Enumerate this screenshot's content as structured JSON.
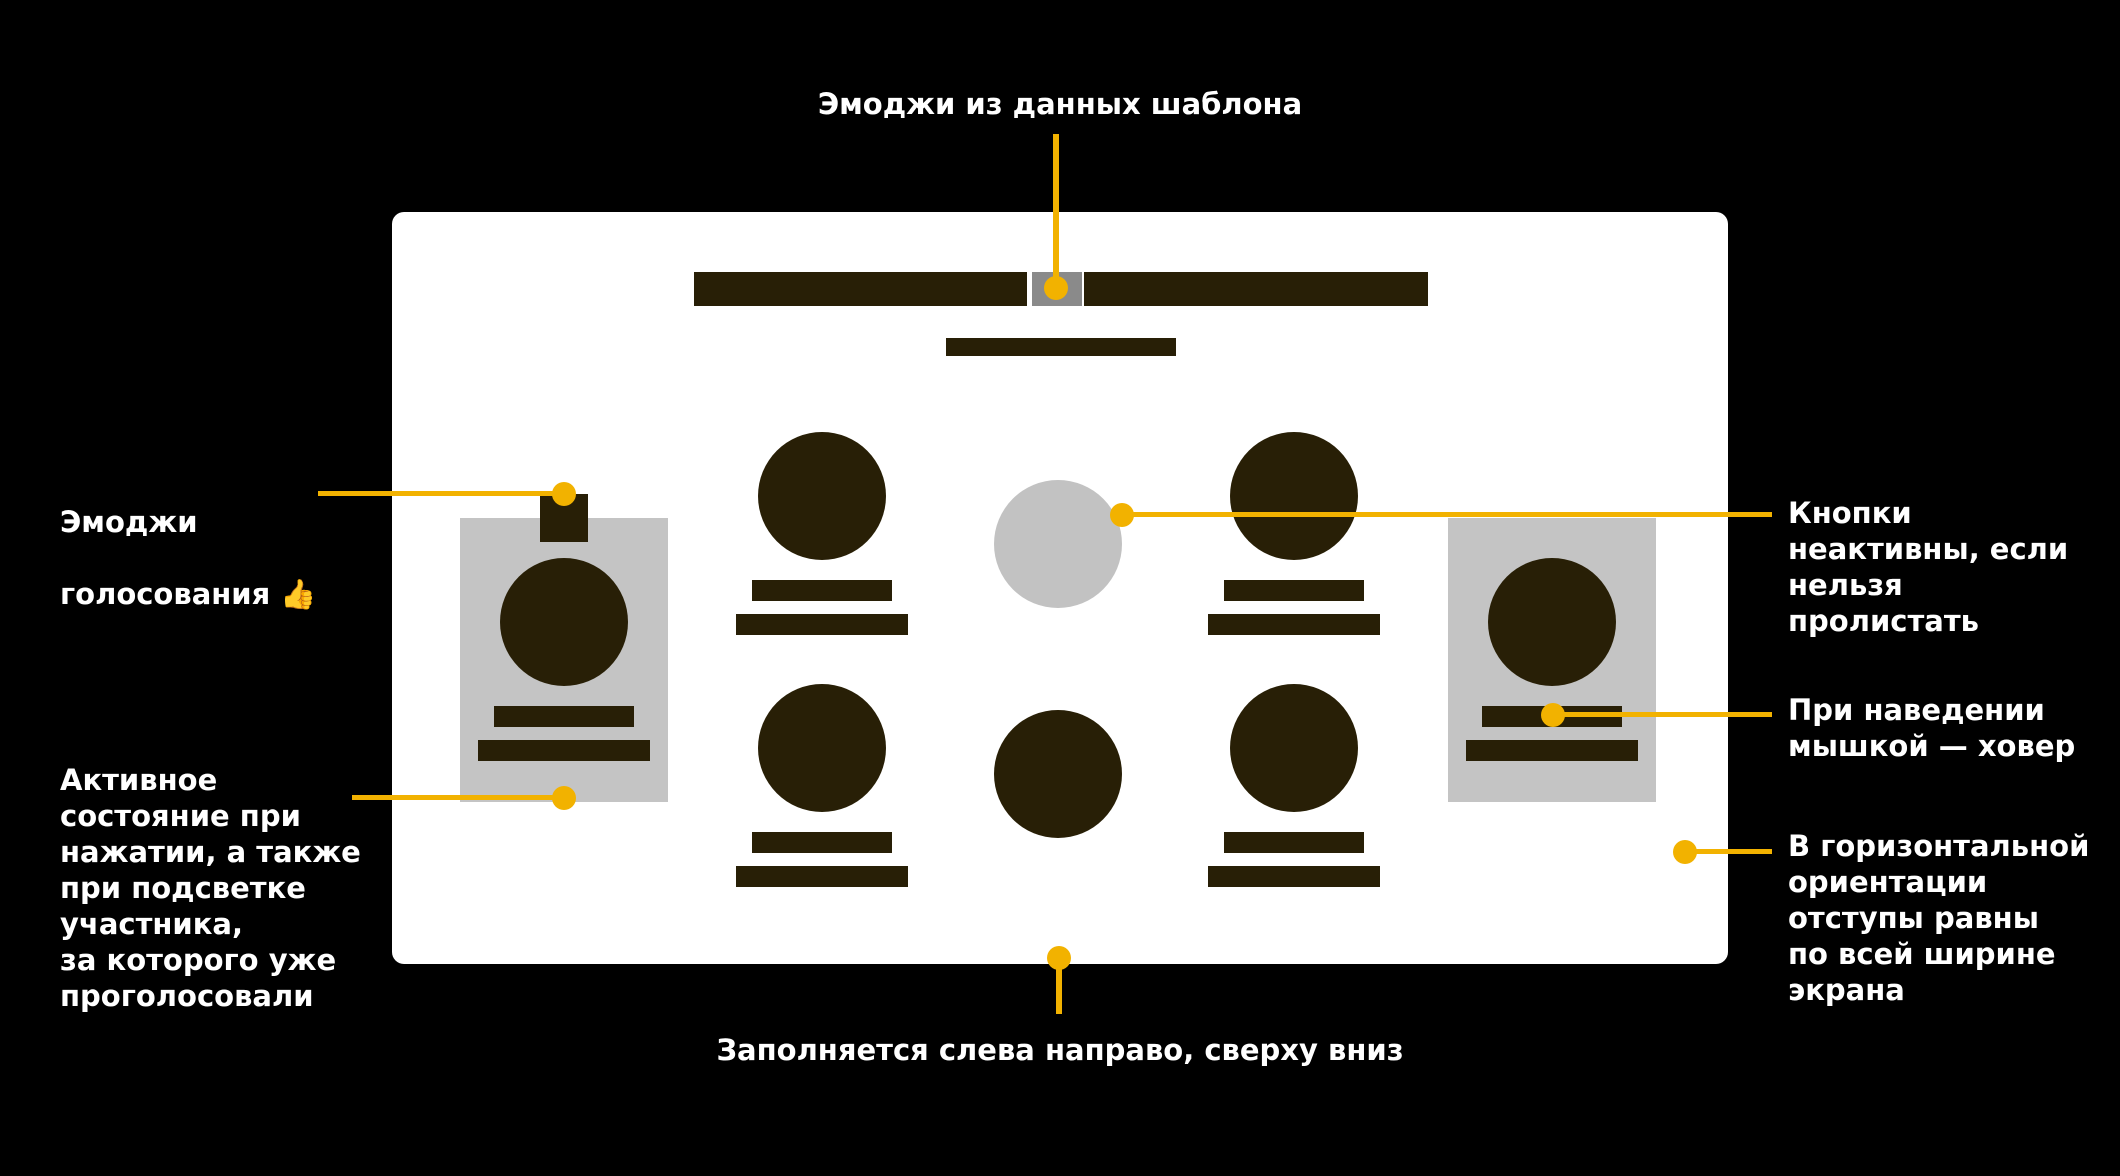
{
  "annotations": {
    "top": "Эмоджи из данных шаблона",
    "vote_emoji_line1": "Эмоджи",
    "vote_emoji_line2": "голосования",
    "vote_emoji_glyph": "👍",
    "active_state": "Активное\nсостояние при\nнажатии, а также\nпри подсветке\nучастника,\nза которого уже\nпроголосовали",
    "inactive_buttons": "Кнопки\nнеактивны, если\nнельзя\nпролистать",
    "hover": "При наведении\nмышкой — ховер",
    "landscape": "В горизонтальной\nориентации\nотступы равны\nпо всей ширине\nэкрана",
    "bottom": "Заполняется слева направо, сверху вниз"
  },
  "colors": {
    "background": "#000000",
    "card": "#ffffff",
    "accent": "#f2b200",
    "dark": "#281f06",
    "panel": "#c4c4c4",
    "inactive": "#c2c2c2"
  }
}
